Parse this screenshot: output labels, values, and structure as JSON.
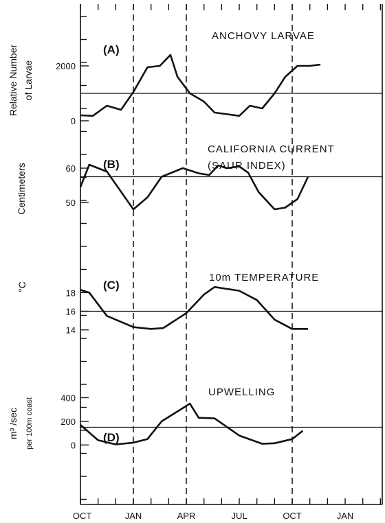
{
  "chart_data": [
    {
      "type": "line",
      "panel": "A",
      "panel_label": "(A)",
      "title": "ANCHOVY LARVAE",
      "ylabel": [
        "Relative Number",
        "of Larvae"
      ],
      "yticks": [
        {
          "value": 0,
          "label": "0"
        },
        {
          "value": 2000,
          "label": "2000"
        }
      ],
      "ylim": [
        -300,
        3900
      ],
      "mean": 1000,
      "x": [
        0,
        0.7,
        1.5,
        2.3,
        3.0,
        3.8,
        4.5,
        5.1,
        5.5,
        6.2,
        7.0,
        7.6,
        8.2,
        9.0,
        9.6,
        10.3,
        11.0,
        11.6,
        12.3,
        13.0,
        13.6
      ],
      "y": [
        200,
        180,
        550,
        400,
        1050,
        1950,
        2000,
        2400,
        1600,
        1000,
        700,
        300,
        250,
        180,
        550,
        450,
        1000,
        1600,
        2000,
        2000,
        2050
      ]
    },
    {
      "type": "line",
      "panel": "B",
      "panel_label": "(B)",
      "title": [
        "CALIFORNIA CURRENT",
        "(SAUR INDEX)"
      ],
      "ylabel": [
        "Centimeters"
      ],
      "yticks": [
        {
          "value": 50,
          "label": "50"
        },
        {
          "value": 60,
          "label": "60"
        }
      ],
      "ylim": [
        43,
        68
      ],
      "mean": 57.5,
      "x": [
        -0.1,
        0.5,
        1.5,
        3.0,
        3.8,
        4.6,
        5.8,
        6.7,
        7.3,
        7.8,
        8.3,
        9.0,
        9.5,
        10.1,
        11.0,
        11.6,
        12.3,
        12.9
      ],
      "y": [
        54.5,
        61,
        59,
        48,
        51.5,
        57.5,
        60,
        58.5,
        58,
        60.8,
        60,
        60.5,
        58.7,
        53,
        48,
        48.5,
        51,
        57.5
      ]
    },
    {
      "type": "line",
      "panel": "C",
      "panel_label": "(C)",
      "title": "10m TEMPERATURE",
      "ylabel": [
        "°C"
      ],
      "yticks": [
        {
          "value": 14,
          "label": "14"
        },
        {
          "value": 16,
          "label": "16"
        },
        {
          "value": 18,
          "label": "18"
        }
      ],
      "ylim": [
        10,
        22
      ],
      "mean": 16,
      "x": [
        -0.1,
        0.5,
        1.5,
        3.0,
        4.0,
        4.7,
        6.0,
        7.0,
        7.6,
        9.0,
        10.0,
        11.0,
        12.0,
        12.9
      ],
      "y": [
        18.3,
        18,
        15.5,
        14.3,
        14.1,
        14.2,
        15.8,
        17.8,
        18.6,
        18.2,
        17.2,
        15.1,
        14.1,
        14.1
      ]
    },
    {
      "type": "line",
      "panel": "D",
      "panel_label": "(D)",
      "title": "UPWELLING",
      "ylabel": [
        "m³ /sec",
        "per 100m coast"
      ],
      "yticks": [
        {
          "value": 0,
          "label": "0"
        },
        {
          "value": 200,
          "label": "200"
        },
        {
          "value": 400,
          "label": "400"
        }
      ],
      "ylim": [
        -300,
        600
      ],
      "mean": 150,
      "x": [
        -0.1,
        1.0,
        2.0,
        3.0,
        3.8,
        4.6,
        6.2,
        6.7,
        7.6,
        9.0,
        10.3,
        11.0,
        12.0,
        12.6
      ],
      "y": [
        170,
        40,
        5,
        20,
        50,
        200,
        350,
        230,
        225,
        80,
        10,
        15,
        50,
        120
      ]
    }
  ],
  "x_axis": {
    "month_labels": [
      {
        "x": 0.1,
        "label": "OCT"
      },
      {
        "x": 3.0,
        "label": "JAN"
      },
      {
        "x": 6.0,
        "label": "APR"
      },
      {
        "x": 9.0,
        "label": "JUL"
      },
      {
        "x": 12.0,
        "label": "OCT"
      },
      {
        "x": 15.0,
        "label": "JAN"
      }
    ],
    "jan_lines": [
      3,
      12
    ],
    "apr_line": 6
  }
}
